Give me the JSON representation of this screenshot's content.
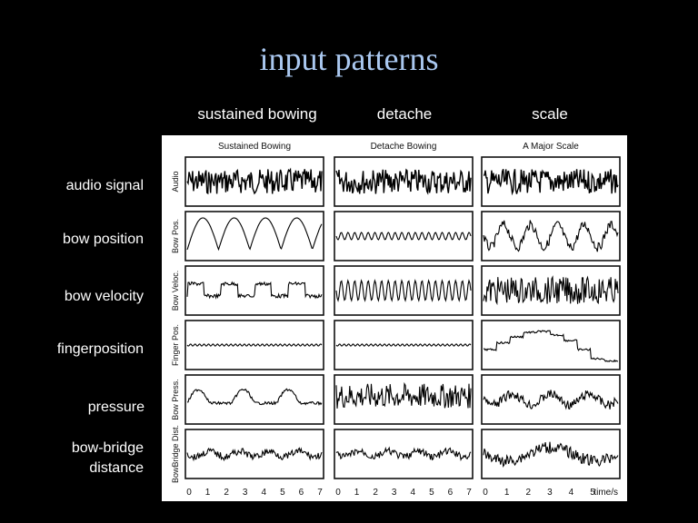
{
  "title": "input patterns",
  "columns": [
    "sustained bowing",
    "detache",
    "scale"
  ],
  "rows": [
    "audio signal",
    "bow position",
    "bow velocity",
    "fingerposition",
    "pressure",
    "bow-bridge distance"
  ],
  "figure": {
    "subplot_titles": [
      "Sustained Bowing",
      "Detache Bowing",
      "A Major Scale"
    ],
    "row_axis_labels": [
      "Audio",
      "Bow Pos.",
      "Bow Veloc.",
      "Finger Pos.",
      "Bow Press.",
      "BowBridge Dist."
    ],
    "x_ticks": {
      "col1": [
        "0",
        "1",
        "2",
        "3",
        "4",
        "5",
        "6",
        "7"
      ],
      "col2": [
        "0",
        "1",
        "2",
        "3",
        "4",
        "5",
        "6",
        "7"
      ],
      "col3": [
        "0",
        "1",
        "2",
        "3",
        "4",
        "5"
      ]
    },
    "x_unit": "time/s"
  }
}
